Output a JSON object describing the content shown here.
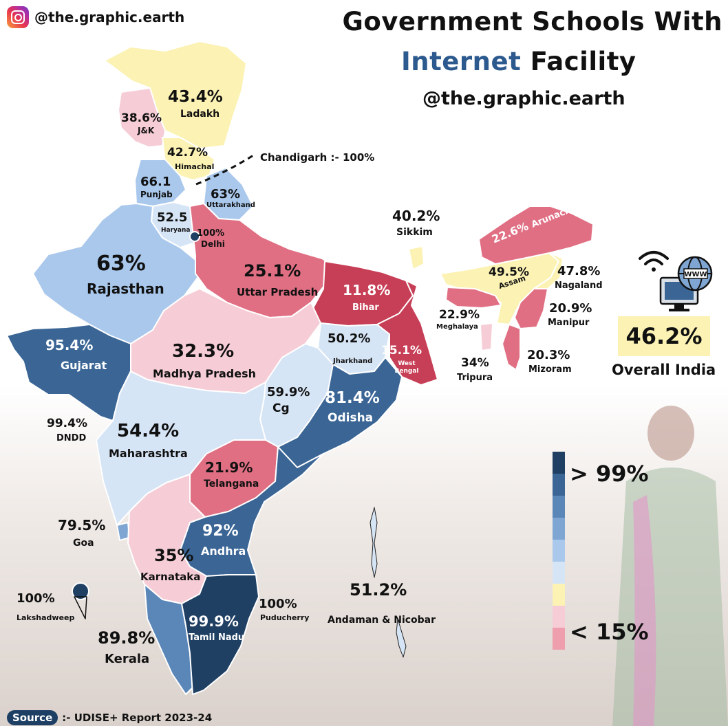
{
  "brand": {
    "handle": "@the.graphic.earth",
    "icon": "instagram-icon"
  },
  "title": {
    "line1": "Government Schools With",
    "highlight": "Internet",
    "line2_rest": "Facility",
    "credit": "@the.graphic.earth"
  },
  "colors": {
    "gt99": "#1f3f63",
    "scale": [
      "#1f3f63",
      "#3a6595",
      "#5a86b8",
      "#7fa6d3",
      "#a9c8ec",
      "#d6e5f6",
      "#fbf2b4",
      "#f6cdd6",
      "#ee9eac",
      "#e06f83",
      "#c73f56"
    ],
    "accent_blue": "#2d5a8e"
  },
  "states": {
    "ladakh": {
      "value": "43.4%",
      "name": "Ladakh"
    },
    "jk": {
      "value": "38.6%",
      "name": "J&K"
    },
    "himachal": {
      "value": "42.7%",
      "name": "Himachal"
    },
    "chandigarh": {
      "text": "Chandigarh :- 100%"
    },
    "punjab": {
      "value": "66.1",
      "name": "Punjab"
    },
    "uttarakhand": {
      "value": "63%",
      "name": "Uttarakhand"
    },
    "haryana": {
      "value": "52.5",
      "name": "Haryana"
    },
    "delhi": {
      "value": "100%",
      "name": "Delhi"
    },
    "rajasthan": {
      "value": "63%",
      "name": "Rajasthan"
    },
    "up": {
      "value": "25.1%",
      "name": "Uttar Pradesh"
    },
    "bihar": {
      "value": "11.8%",
      "name": "Bihar"
    },
    "sikkim": {
      "value": "40.2%",
      "name": "Sikkim"
    },
    "arunachal": {
      "value": "22.6%",
      "name": "Arunachal"
    },
    "assam": {
      "value": "49.5%",
      "name": "Assam"
    },
    "nagaland": {
      "value": "47.8%",
      "name": "Nagaland"
    },
    "manipur": {
      "value": "20.9%",
      "name": "Manipur"
    },
    "meghalaya": {
      "value": "22.9%",
      "name": "Meghalaya"
    },
    "tripura": {
      "value": "34%",
      "name": "Tripura"
    },
    "mizoram": {
      "value": "20.3%",
      "name": "Mizoram"
    },
    "gujarat": {
      "value": "95.4%",
      "name": "Gujarat"
    },
    "mp": {
      "value": "32.3%",
      "name": "Madhya Pradesh"
    },
    "jharkhand": {
      "value": "50.2%",
      "name": "Jharkhand"
    },
    "westbengal": {
      "value": "15.1%",
      "name": "West Bengal"
    },
    "dndd": {
      "value": "99.4%",
      "name": "DNDD"
    },
    "cg": {
      "value": "59.9%",
      "name": "Cg"
    },
    "odisha": {
      "value": "81.4%",
      "name": "Odisha"
    },
    "maharashtra": {
      "value": "54.4%",
      "name": "Maharashtra"
    },
    "telangana": {
      "value": "21.9%",
      "name": "Telangana"
    },
    "goa": {
      "value": "79.5%",
      "name": "Goa"
    },
    "andhra": {
      "value": "92%",
      "name": "Andhra"
    },
    "karnataka": {
      "value": "35%",
      "name": "Karnataka"
    },
    "lakshadweep": {
      "value": "100%",
      "name": "Lakshadweep"
    },
    "puducherry": {
      "value": "100%",
      "name": "Puducherry"
    },
    "tamilnadu": {
      "value": "99.9%",
      "name": "Tamil Nadu"
    },
    "kerala": {
      "value": "89.8%",
      "name": "Kerala"
    },
    "andaman": {
      "value": "51.2%",
      "name": "Andaman & Nicobar"
    }
  },
  "overall": {
    "value": "46.2%",
    "label": "Overall India",
    "icons": [
      "wifi-icon",
      "globe-www-icon",
      "monitor-icon"
    ],
    "globe_text": "WWW"
  },
  "legend": {
    "high": "> 99%",
    "low": "< 15%"
  },
  "source": {
    "pill": "Source",
    "text": ":- UDISE+ Report 2023-24"
  }
}
